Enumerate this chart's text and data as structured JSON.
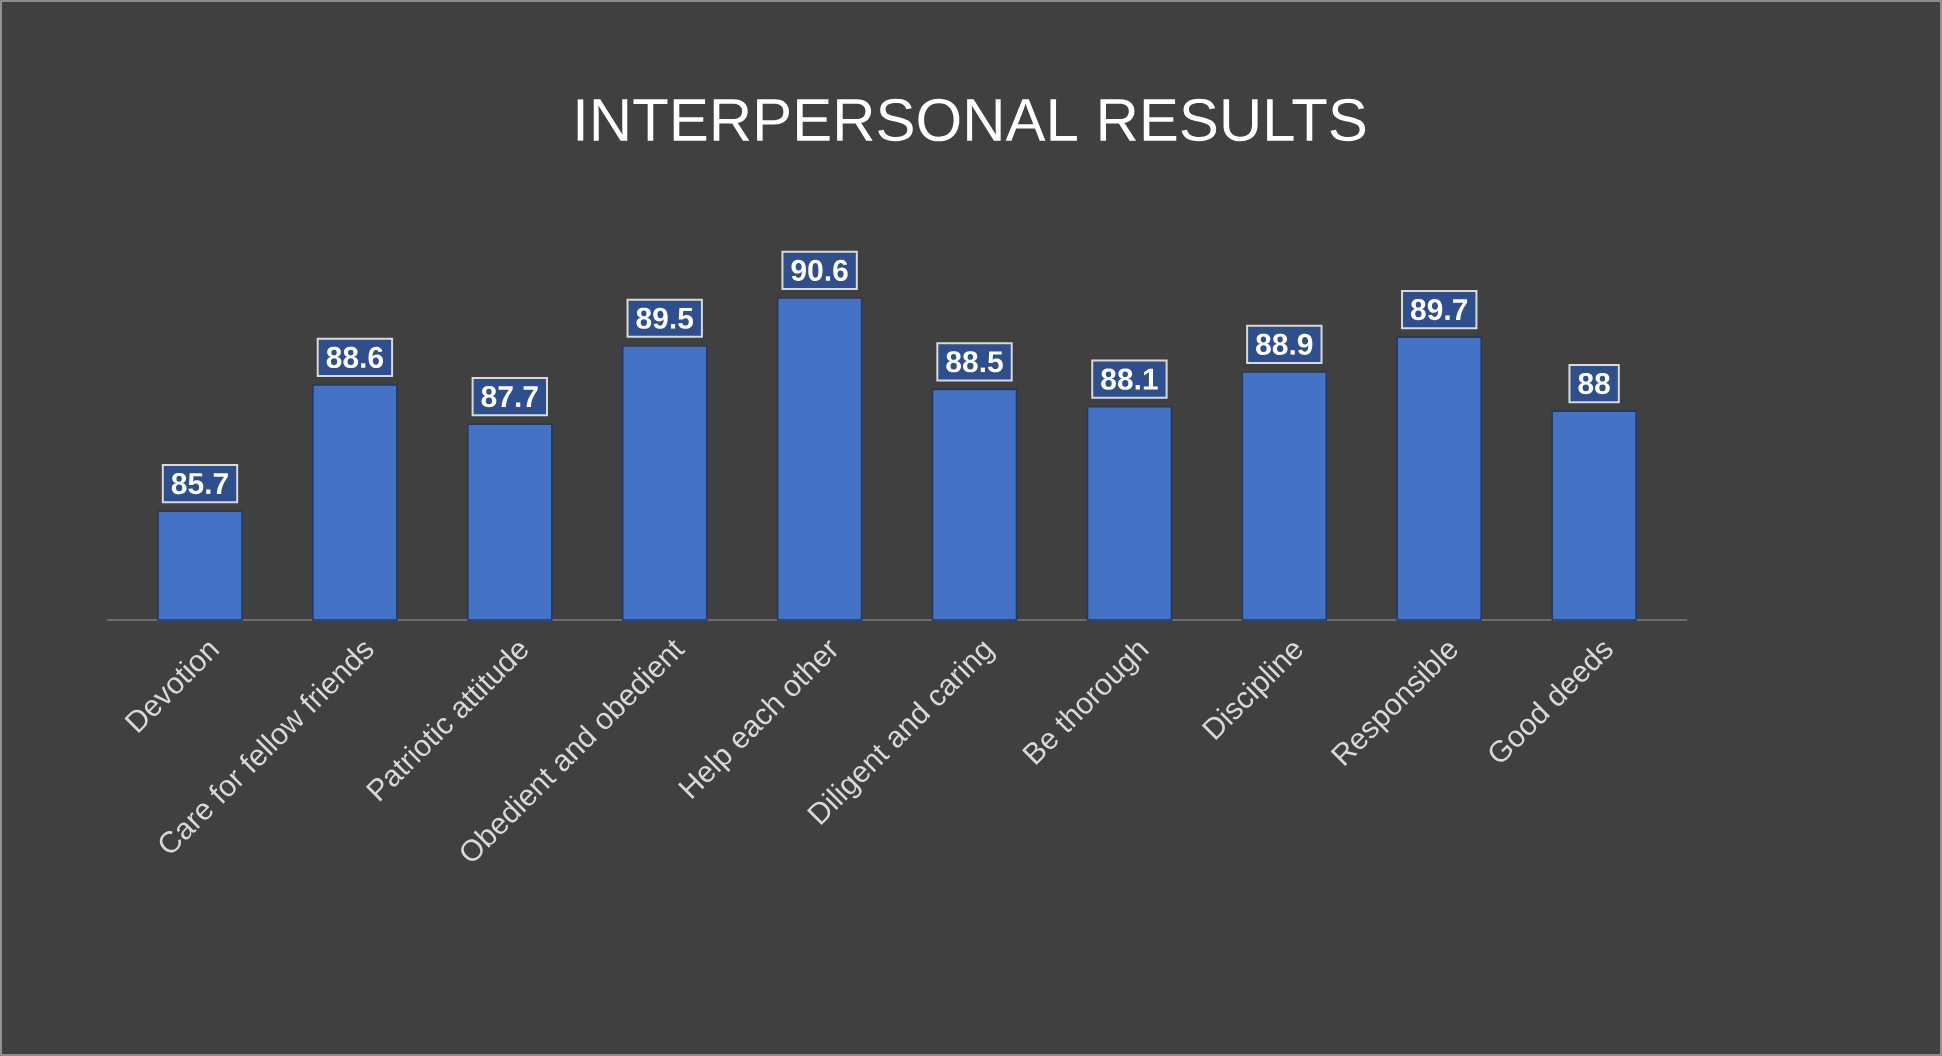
{
  "chart_data": {
    "type": "bar",
    "title": "INTERPERSONAL RESULTS",
    "categories": [
      "Devotion",
      "Care for fellow friends",
      "Patriotic attitude",
      "Obedient and obedient",
      "Help each other",
      "Diligent and caring",
      "Be thorough",
      "Discipline",
      "Responsible",
      "Good deeds"
    ],
    "values": [
      85.7,
      88.6,
      87.7,
      89.5,
      90.6,
      88.5,
      88.1,
      88.9,
      89.7,
      88
    ],
    "color": "#4472c4",
    "ylim": [
      83.2,
      90.6
    ],
    "tick_labels": "x",
    "data_labels": true,
    "grid": false
  }
}
